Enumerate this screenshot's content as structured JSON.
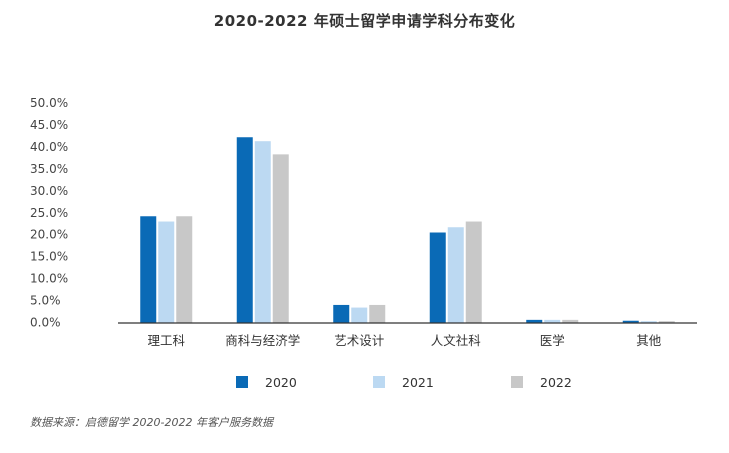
{
  "chart_data": {
    "type": "bar",
    "title": "2020-2022 年硕士留学申请学科分布变化",
    "categories": [
      "理工科",
      "商科与经济学",
      "艺术设计",
      "人文社科",
      "医学",
      "其他"
    ],
    "series": [
      {
        "name": "2020",
        "color": "#0a6ab6",
        "values": [
          24.2,
          42.2,
          4.0,
          20.5,
          0.6,
          0.4
        ]
      },
      {
        "name": "2021",
        "color": "#bcd9f2",
        "values": [
          23.0,
          41.3,
          3.4,
          21.7,
          0.6,
          0.3
        ]
      },
      {
        "name": "2022",
        "color": "#c8c8c8",
        "values": [
          24.2,
          38.3,
          4.0,
          23.0,
          0.6,
          0.3
        ]
      }
    ],
    "yticks": [
      "0.0%",
      "5.0%",
      "10.0%",
      "15.0%",
      "20.0%",
      "25.0%",
      "30.0%",
      "35.0%",
      "40.0%",
      "45.0%",
      "50.0%"
    ],
    "ylim": [
      0,
      50
    ],
    "legend_position": "bottom",
    "grid": false
  },
  "source": "数据来源：启德留学 2020-2022 年客户服务数据"
}
